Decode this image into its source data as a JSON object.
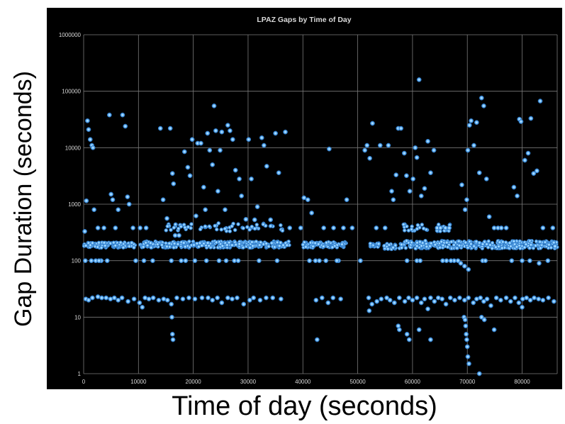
{
  "chart_data": {
    "type": "scatter",
    "title": "LPAZ Gaps by Time of Day",
    "xlabel": "Time of day (seconds)",
    "ylabel": "Gap Duration (seconds)",
    "xlim": [
      0,
      86400
    ],
    "ylim": [
      1,
      1000000
    ],
    "yscale": "log",
    "grid": true,
    "x_ticks": [
      "0",
      "10000",
      "20000",
      "30000",
      "40000",
      "50000",
      "60000",
      "70000",
      "80000"
    ],
    "y_ticks": [
      "1",
      "10",
      "100",
      "1000",
      "10000",
      "100000",
      "1000000"
    ],
    "colors": {
      "background": "#000000",
      "grid": "#7a7a7a",
      "text": "#d9d9d9",
      "marker": "#6fbfff",
      "marker_edge": "#2f7fd0"
    },
    "points": [
      [
        200,
        330
      ],
      [
        500,
        1150
      ],
      [
        700,
        30000
      ],
      [
        900,
        21000
      ],
      [
        1200,
        14000
      ],
      [
        1500,
        11000
      ],
      [
        1700,
        10000
      ],
      [
        1900,
        800
      ],
      [
        2200,
        100
      ],
      [
        2600,
        380
      ],
      [
        3200,
        100
      ],
      [
        3700,
        380
      ],
      [
        4300,
        100
      ],
      [
        4700,
        38000
      ],
      [
        5000,
        1500
      ],
      [
        5300,
        1200
      ],
      [
        5800,
        380
      ],
      [
        6300,
        800
      ],
      [
        7100,
        38000
      ],
      [
        7600,
        24000
      ],
      [
        8000,
        1350
      ],
      [
        8300,
        1000
      ],
      [
        9000,
        380
      ],
      [
        10300,
        380
      ],
      [
        11400,
        380
      ],
      [
        12600,
        100
      ],
      [
        14000,
        22000
      ],
      [
        14500,
        1200
      ],
      [
        15200,
        560
      ],
      [
        15800,
        22000
      ],
      [
        16200,
        3500
      ],
      [
        16400,
        2300
      ],
      [
        16700,
        280
      ],
      [
        17400,
        280
      ],
      [
        17800,
        100
      ],
      [
        18400,
        8500
      ],
      [
        19000,
        4500
      ],
      [
        19400,
        3200
      ],
      [
        19800,
        14000
      ],
      [
        20500,
        620
      ],
      [
        20800,
        12000
      ],
      [
        21400,
        12000
      ],
      [
        21900,
        2000
      ],
      [
        22200,
        800
      ],
      [
        22600,
        18000
      ],
      [
        23000,
        9000
      ],
      [
        23500,
        5000
      ],
      [
        23800,
        55000
      ],
      [
        24100,
        20000
      ],
      [
        24500,
        1700
      ],
      [
        24900,
        9000
      ],
      [
        25200,
        19000
      ],
      [
        25800,
        800
      ],
      [
        26300,
        25000
      ],
      [
        26700,
        20000
      ],
      [
        27200,
        14000
      ],
      [
        27700,
        4000
      ],
      [
        28400,
        2800
      ],
      [
        28800,
        1400
      ],
      [
        29600,
        540
      ],
      [
        30100,
        14000
      ],
      [
        30600,
        2800
      ],
      [
        31200,
        530
      ],
      [
        31700,
        900
      ],
      [
        32500,
        15000
      ],
      [
        32900,
        11000
      ],
      [
        33400,
        4700
      ],
      [
        34100,
        530
      ],
      [
        35000,
        18000
      ],
      [
        35600,
        3600
      ],
      [
        36800,
        19000
      ],
      [
        37600,
        380
      ],
      [
        39600,
        380
      ],
      [
        40200,
        1300
      ],
      [
        40900,
        1200
      ],
      [
        41600,
        700
      ],
      [
        42300,
        100
      ],
      [
        43000,
        100
      ],
      [
        43800,
        380
      ],
      [
        44800,
        9500
      ],
      [
        45600,
        380
      ],
      [
        46500,
        100
      ],
      [
        47400,
        380
      ],
      [
        48000,
        1200
      ],
      [
        49000,
        380
      ],
      [
        50500,
        100
      ],
      [
        51300,
        9000
      ],
      [
        51700,
        11000
      ],
      [
        52200,
        6500
      ],
      [
        52700,
        27000
      ],
      [
        53400,
        380
      ],
      [
        54100,
        11000
      ],
      [
        55000,
        380
      ],
      [
        55600,
        11000
      ],
      [
        56200,
        1700
      ],
      [
        56500,
        1200
      ],
      [
        57000,
        3300
      ],
      [
        57400,
        22000
      ],
      [
        57900,
        22000
      ],
      [
        58500,
        8000
      ],
      [
        58900,
        3200
      ],
      [
        59500,
        1700
      ],
      [
        60100,
        2800
      ],
      [
        60500,
        10000
      ],
      [
        60800,
        6700
      ],
      [
        61200,
        160000
      ],
      [
        61600,
        1400
      ],
      [
        62200,
        1900
      ],
      [
        62800,
        13000
      ],
      [
        63300,
        3600
      ],
      [
        63900,
        9000
      ],
      [
        64500,
        380
      ],
      [
        65100,
        380
      ],
      [
        66000,
        380
      ],
      [
        66700,
        380
      ],
      [
        67600,
        100
      ],
      [
        68300,
        100
      ],
      [
        69000,
        2200
      ],
      [
        69600,
        800
      ],
      [
        69900,
        1200
      ],
      [
        70100,
        9000
      ],
      [
        70400,
        25000
      ],
      [
        70700,
        30000
      ],
      [
        71200,
        11000
      ],
      [
        71700,
        28000
      ],
      [
        72200,
        3600
      ],
      [
        72600,
        76000
      ],
      [
        73000,
        55000
      ],
      [
        73500,
        2800
      ],
      [
        74000,
        600
      ],
      [
        74900,
        380
      ],
      [
        75600,
        380
      ],
      [
        76200,
        380
      ],
      [
        77100,
        380
      ],
      [
        78500,
        2000
      ],
      [
        79100,
        1400
      ],
      [
        79500,
        32000
      ],
      [
        79800,
        29000
      ],
      [
        80500,
        6000
      ],
      [
        81100,
        8000
      ],
      [
        81600,
        33000
      ],
      [
        82100,
        3500
      ],
      [
        82700,
        3900
      ],
      [
        83300,
        67000
      ],
      [
        83800,
        380
      ],
      [
        84700,
        100
      ],
      [
        85600,
        380
      ],
      [
        86000,
        180
      ],
      [
        300,
        100
      ],
      [
        1400,
        100
      ],
      [
        2800,
        100
      ],
      [
        9500,
        100
      ],
      [
        11000,
        100
      ],
      [
        16000,
        100
      ],
      [
        18600,
        100
      ],
      [
        20300,
        100
      ],
      [
        22400,
        100
      ],
      [
        24700,
        100
      ],
      [
        26000,
        100
      ],
      [
        27500,
        100
      ],
      [
        28200,
        100
      ],
      [
        32000,
        100
      ],
      [
        35300,
        100
      ],
      [
        41200,
        100
      ],
      [
        44200,
        100
      ],
      [
        46200,
        100
      ],
      [
        59000,
        100
      ],
      [
        60800,
        100
      ],
      [
        61400,
        100
      ],
      [
        65500,
        100
      ],
      [
        66200,
        100
      ],
      [
        67000,
        100
      ],
      [
        68800,
        90
      ],
      [
        69500,
        80
      ],
      [
        70200,
        70
      ],
      [
        72800,
        100
      ],
      [
        73300,
        100
      ],
      [
        78100,
        100
      ],
      [
        80000,
        100
      ],
      [
        81400,
        100
      ],
      [
        83100,
        90
      ],
      [
        400,
        21
      ],
      [
        900,
        20
      ],
      [
        1600,
        22
      ],
      [
        2600,
        23
      ],
      [
        3300,
        22
      ],
      [
        4100,
        22
      ],
      [
        4900,
        21
      ],
      [
        5600,
        22
      ],
      [
        6300,
        20
      ],
      [
        7000,
        22
      ],
      [
        8100,
        19
      ],
      [
        9200,
        21
      ],
      [
        10200,
        18
      ],
      [
        10700,
        15
      ],
      [
        11200,
        22
      ],
      [
        11900,
        21
      ],
      [
        12700,
        22
      ],
      [
        13700,
        20
      ],
      [
        14600,
        21
      ],
      [
        15300,
        20
      ],
      [
        16000,
        17
      ],
      [
        17000,
        22
      ],
      [
        18100,
        21
      ],
      [
        19200,
        22
      ],
      [
        20300,
        21
      ],
      [
        21600,
        22
      ],
      [
        22700,
        22
      ],
      [
        23500,
        20
      ],
      [
        24400,
        22
      ],
      [
        25200,
        18
      ],
      [
        26300,
        22
      ],
      [
        27100,
        21
      ],
      [
        28000,
        22
      ],
      [
        29200,
        17
      ],
      [
        30300,
        20
      ],
      [
        31000,
        22
      ],
      [
        32200,
        20
      ],
      [
        33300,
        22
      ],
      [
        34500,
        22
      ],
      [
        36000,
        21
      ],
      [
        42400,
        20
      ],
      [
        43500,
        22
      ],
      [
        44600,
        18
      ],
      [
        45500,
        22
      ],
      [
        46900,
        21
      ],
      [
        52000,
        22
      ],
      [
        52600,
        17
      ],
      [
        53500,
        19
      ],
      [
        54300,
        21
      ],
      [
        55300,
        22
      ],
      [
        55900,
        20
      ],
      [
        56700,
        18
      ],
      [
        57600,
        22
      ],
      [
        58600,
        19
      ],
      [
        59300,
        22
      ],
      [
        60000,
        20
      ],
      [
        60800,
        22
      ],
      [
        61600,
        18
      ],
      [
        62200,
        21
      ],
      [
        62800,
        14
      ],
      [
        63300,
        22
      ],
      [
        64000,
        19
      ],
      [
        64700,
        22
      ],
      [
        65400,
        21
      ],
      [
        66100,
        17
      ],
      [
        66900,
        22
      ],
      [
        67700,
        20
      ],
      [
        68600,
        22
      ],
      [
        69500,
        20
      ],
      [
        70200,
        22
      ],
      [
        71100,
        18
      ],
      [
        71700,
        21
      ],
      [
        72400,
        22
      ],
      [
        73000,
        19
      ],
      [
        73600,
        21
      ],
      [
        74300,
        16
      ],
      [
        75300,
        22
      ],
      [
        76100,
        20
      ],
      [
        77100,
        22
      ],
      [
        77900,
        19
      ],
      [
        78700,
        22
      ],
      [
        79400,
        18
      ],
      [
        80100,
        21
      ],
      [
        80800,
        22
      ],
      [
        81500,
        20
      ],
      [
        82200,
        22
      ],
      [
        83000,
        21
      ],
      [
        83800,
        20
      ],
      [
        84800,
        22
      ],
      [
        85800,
        19
      ],
      [
        16100,
        10
      ],
      [
        16200,
        5
      ],
      [
        16300,
        4
      ],
      [
        42600,
        4
      ],
      [
        52100,
        13
      ],
      [
        57400,
        7
      ],
      [
        57600,
        6
      ],
      [
        59000,
        5
      ],
      [
        59400,
        4
      ],
      [
        63300,
        4
      ],
      [
        69400,
        10
      ],
      [
        69600,
        9
      ],
      [
        69700,
        7
      ],
      [
        69800,
        5
      ],
      [
        69900,
        4
      ],
      [
        70000,
        3
      ],
      [
        70100,
        2
      ],
      [
        70300,
        1.5
      ],
      [
        72200,
        1
      ],
      [
        72600,
        10
      ],
      [
        73100,
        9
      ],
      [
        74900,
        6
      ],
      [
        80000,
        15
      ],
      [
        61200,
        6
      ]
    ],
    "band_ranges": [
      {
        "x_start": 0,
        "x_end": 9400,
        "y_min": 170,
        "y_max": 210
      },
      {
        "x_start": 10300,
        "x_end": 37700,
        "y_min": 170,
        "y_max": 220
      },
      {
        "x_start": 40000,
        "x_end": 47900,
        "y_min": 170,
        "y_max": 215
      },
      {
        "x_start": 52000,
        "x_end": 53900,
        "y_min": 175,
        "y_max": 205
      },
      {
        "x_start": 54800,
        "x_end": 57000,
        "y_min": 160,
        "y_max": 200
      },
      {
        "x_start": 57500,
        "x_end": 86400,
        "y_min": 165,
        "y_max": 225
      }
    ],
    "band_density": 0.012,
    "upper_band_ranges": [
      {
        "x_start": 15000,
        "x_end": 36500,
        "y_min": 330,
        "y_max": 460
      },
      {
        "x_start": 57500,
        "x_end": 67000,
        "y_min": 330,
        "y_max": 460
      }
    ],
    "upper_band_density": 0.003
  }
}
